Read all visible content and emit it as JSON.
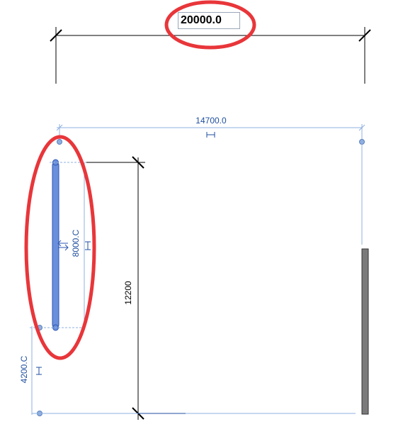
{
  "top_dimension": {
    "value": "20000.0"
  },
  "dimensions": {
    "horizontal_top": "14700.0",
    "vertical_element": "8000.C",
    "vertical_overall": "12200",
    "vertical_bottom": "4200.C"
  },
  "colors": {
    "dimension_blue": "#1f4fa0",
    "witness_blue": "#8fb0e0",
    "selected_element": "#6a8fdc",
    "highlight_red": "#e8363a",
    "wall_gray": "#7a7a7a"
  }
}
